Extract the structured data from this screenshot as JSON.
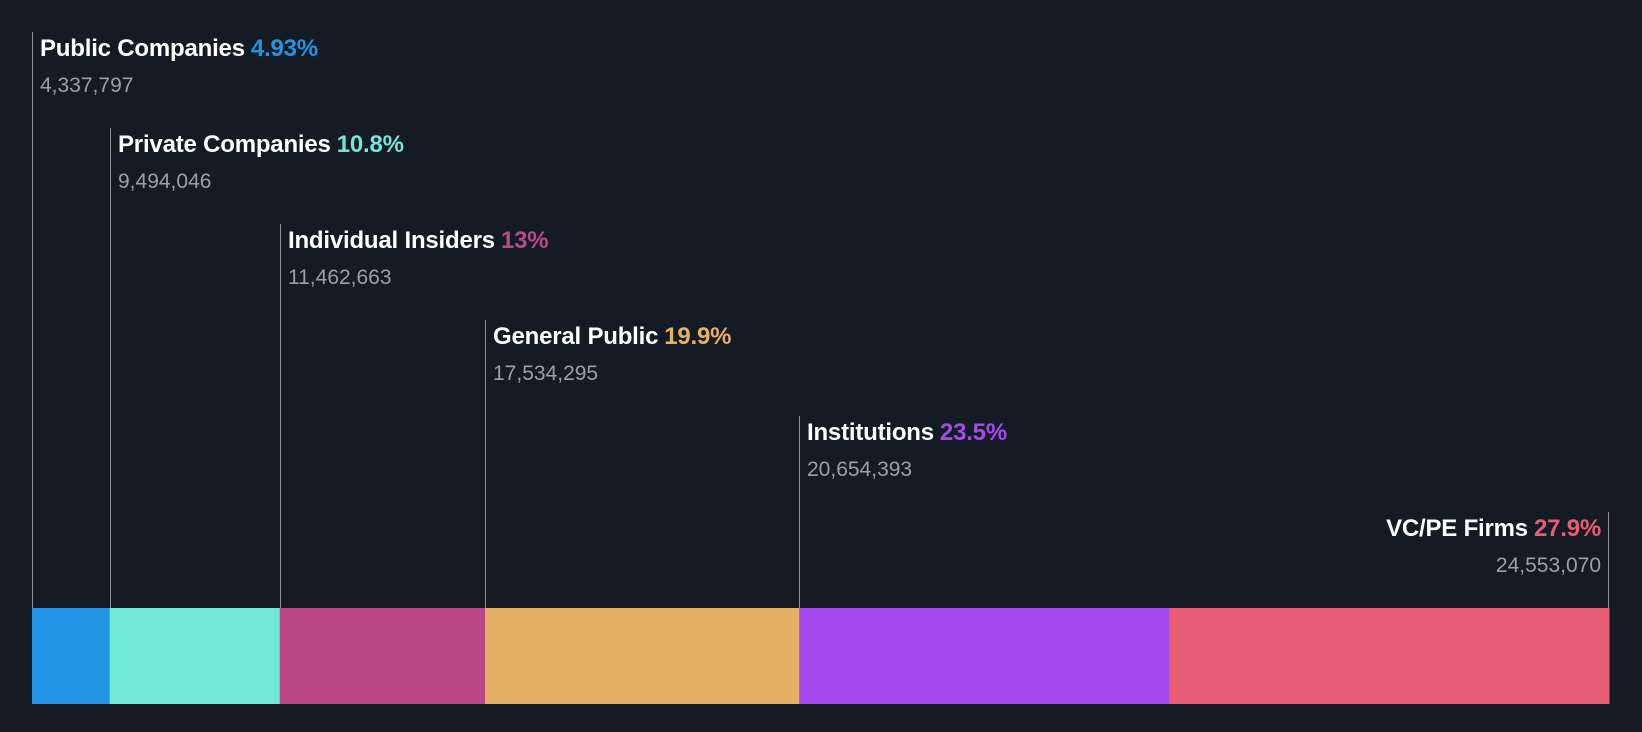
{
  "chart_data": {
    "type": "bar",
    "orientation": "stacked-horizontal",
    "title": "",
    "segments": [
      {
        "name": "Public Companies",
        "percent_label": "4.93%",
        "shares_label": "4,337,797",
        "percent": 4.93,
        "shares": 4337797,
        "color": "#2394e3"
      },
      {
        "name": "Private Companies",
        "percent_label": "10.8%",
        "shares_label": "9,494,046",
        "percent": 10.8,
        "shares": 9494046,
        "color": "#71e7d6"
      },
      {
        "name": "Individual Insiders",
        "percent_label": "13%",
        "shares_label": "11,462,663",
        "percent": 13.0,
        "shares": 11462663,
        "color": "#bb4888"
      },
      {
        "name": "General Public",
        "percent_label": "19.9%",
        "shares_label": "17,534,295",
        "percent": 19.9,
        "shares": 17534295,
        "color": "#e5b064"
      },
      {
        "name": "Institutions",
        "percent_label": "23.5%",
        "shares_label": "20,654,393",
        "percent": 23.5,
        "shares": 20654393,
        "color": "#a64aed"
      },
      {
        "name": "VC/PE Firms",
        "percent_label": "27.9%",
        "shares_label": "24,553,070",
        "percent": 27.9,
        "shares": 24553070,
        "color": "#e85d76"
      }
    ]
  },
  "colors": {
    "background": "#151b24",
    "label_text": "#ffffff",
    "value_text": "#9aa0a6",
    "leader_line": "#8a8f96"
  }
}
